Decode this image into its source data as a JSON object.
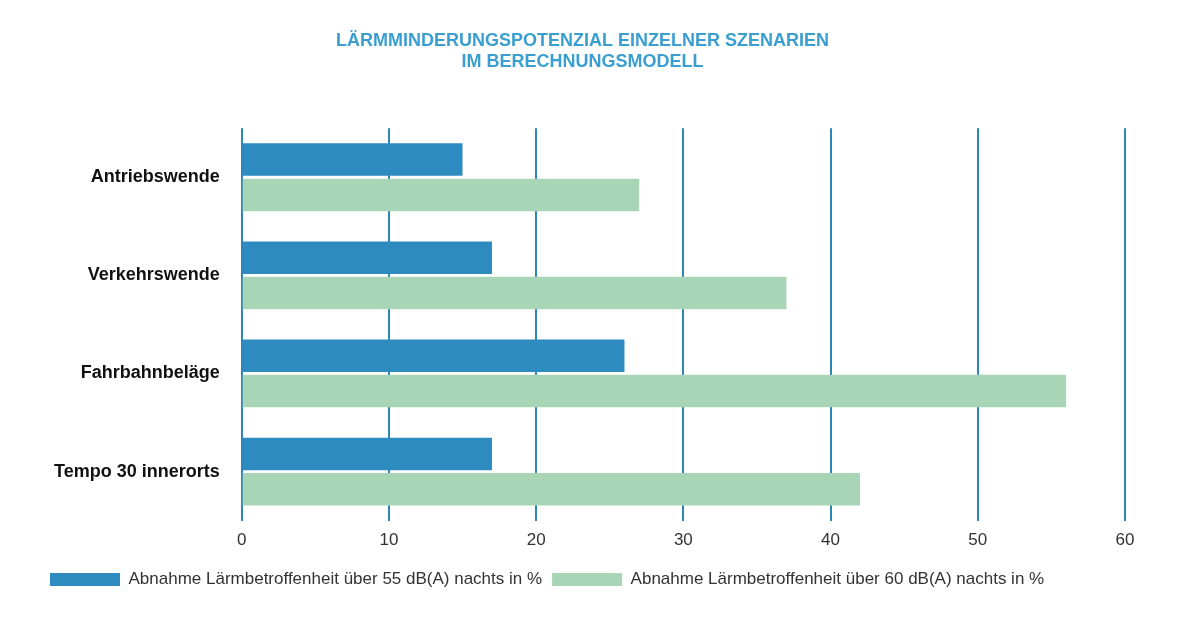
{
  "chart_data": {
    "type": "bar",
    "orientation": "horizontal",
    "title": [
      "LÄRMMINDERUNGSPOTENZIAL EINZELNER SZENARIEN",
      "IM BERECHNUNGSMODELL"
    ],
    "categories": [
      "Antriebswende",
      "Verkehrswende",
      "Fahrbahnbeläge",
      "Tempo 30 innerorts"
    ],
    "series": [
      {
        "name": "Abnahme Lärmbetroffenheit über 55 dB(A) nachts in %",
        "color": "#2e8bc0",
        "values": [
          15,
          17,
          26,
          17
        ]
      },
      {
        "name": "Abnahme Lärmbetroffenheit über 60 dB(A) nachts in %",
        "color": "#a8d5b6",
        "values": [
          27,
          37,
          56,
          42
        ]
      }
    ],
    "xlim": [
      0,
      60
    ],
    "xticks": [
      0,
      10,
      20,
      30,
      40,
      50,
      60
    ],
    "grid": true,
    "legend": "bottom"
  }
}
